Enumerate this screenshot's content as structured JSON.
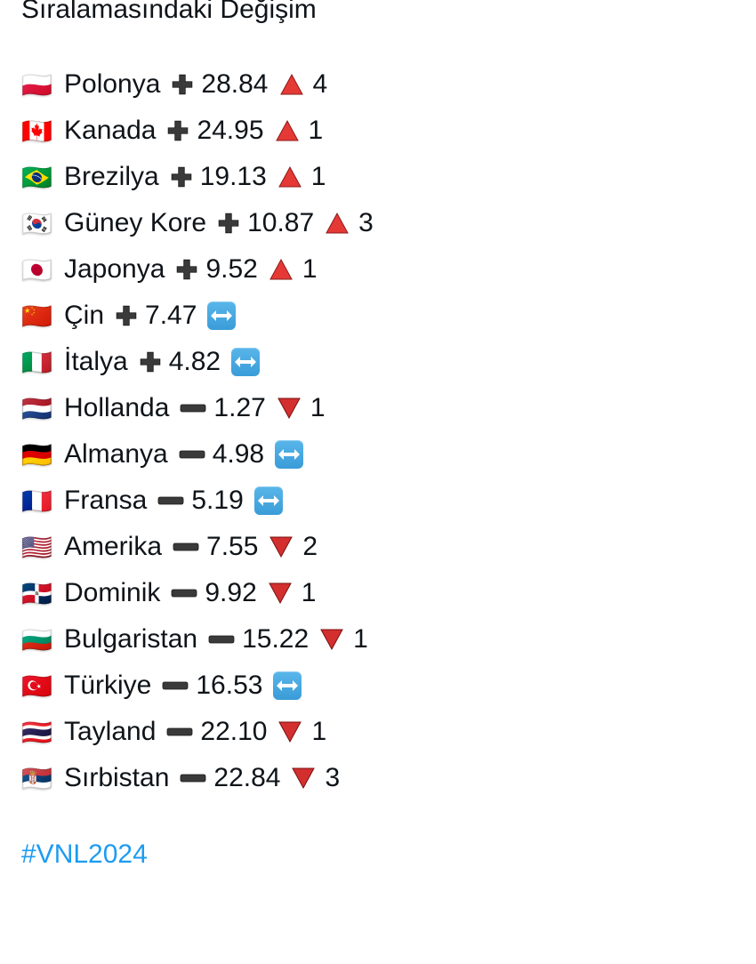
{
  "header": "Sıralamasındaki Değişim",
  "hashtag": "#VNL2024",
  "colors": {
    "text": "#0f1419",
    "hashtag": "#1d9bf0",
    "plus_fill": "#3a3a3a",
    "minus_fill": "#3a3a3a",
    "up_fill": "#e53935",
    "up_stroke": "#8b1a1a",
    "down_fill": "#d32f2f",
    "down_stroke": "#7a0f0f",
    "same_bg": "#4aa8e0",
    "same_arrow": "#ffffff"
  },
  "rows": [
    {
      "flag": "🇵🇱",
      "country": "Polonya",
      "sign": "plus",
      "value": "28.84",
      "dir": "up",
      "change": "4"
    },
    {
      "flag": "🇨🇦",
      "country": "Kanada",
      "sign": "plus",
      "value": "24.95",
      "dir": "up",
      "change": "1"
    },
    {
      "flag": "🇧🇷",
      "country": "Brezilya",
      "sign": "plus",
      "value": "19.13",
      "dir": "up",
      "change": "1"
    },
    {
      "flag": "🇰🇷",
      "country": "Güney Kore",
      "sign": "plus",
      "value": "10.87",
      "dir": "up",
      "change": "3"
    },
    {
      "flag": "🇯🇵",
      "country": "Japonya",
      "sign": "plus",
      "value": "9.52",
      "dir": "up",
      "change": "1"
    },
    {
      "flag": "🇨🇳",
      "country": "Çin",
      "sign": "plus",
      "value": "7.47",
      "dir": "same",
      "change": ""
    },
    {
      "flag": "🇮🇹",
      "country": "İtalya",
      "sign": "plus",
      "value": "4.82",
      "dir": "same",
      "change": ""
    },
    {
      "flag": "🇳🇱",
      "country": "Hollanda",
      "sign": "minus",
      "value": "1.27",
      "dir": "down",
      "change": "1"
    },
    {
      "flag": "🇩🇪",
      "country": "Almanya",
      "sign": "minus",
      "value": "4.98",
      "dir": "same",
      "change": ""
    },
    {
      "flag": "🇫🇷",
      "country": "Fransa",
      "sign": "minus",
      "value": "5.19",
      "dir": "same",
      "change": ""
    },
    {
      "flag": "🇺🇸",
      "country": "Amerika",
      "sign": "minus",
      "value": "7.55",
      "dir": "down",
      "change": "2"
    },
    {
      "flag": "🇩🇴",
      "country": "Dominik",
      "sign": "minus",
      "value": "9.92",
      "dir": "down",
      "change": "1"
    },
    {
      "flag": "🇧🇬",
      "country": "Bulgaristan",
      "sign": "minus",
      "value": "15.22",
      "dir": "down",
      "change": "1"
    },
    {
      "flag": "🇹🇷",
      "country": "Türkiye",
      "sign": "minus",
      "value": "16.53",
      "dir": "same",
      "change": ""
    },
    {
      "flag": "🇹🇭",
      "country": "Tayland",
      "sign": "minus",
      "value": "22.10",
      "dir": "down",
      "change": "1"
    },
    {
      "flag": "🇷🇸",
      "country": "Sırbistan",
      "sign": "minus",
      "value": "22.84",
      "dir": "down",
      "change": "3"
    }
  ]
}
